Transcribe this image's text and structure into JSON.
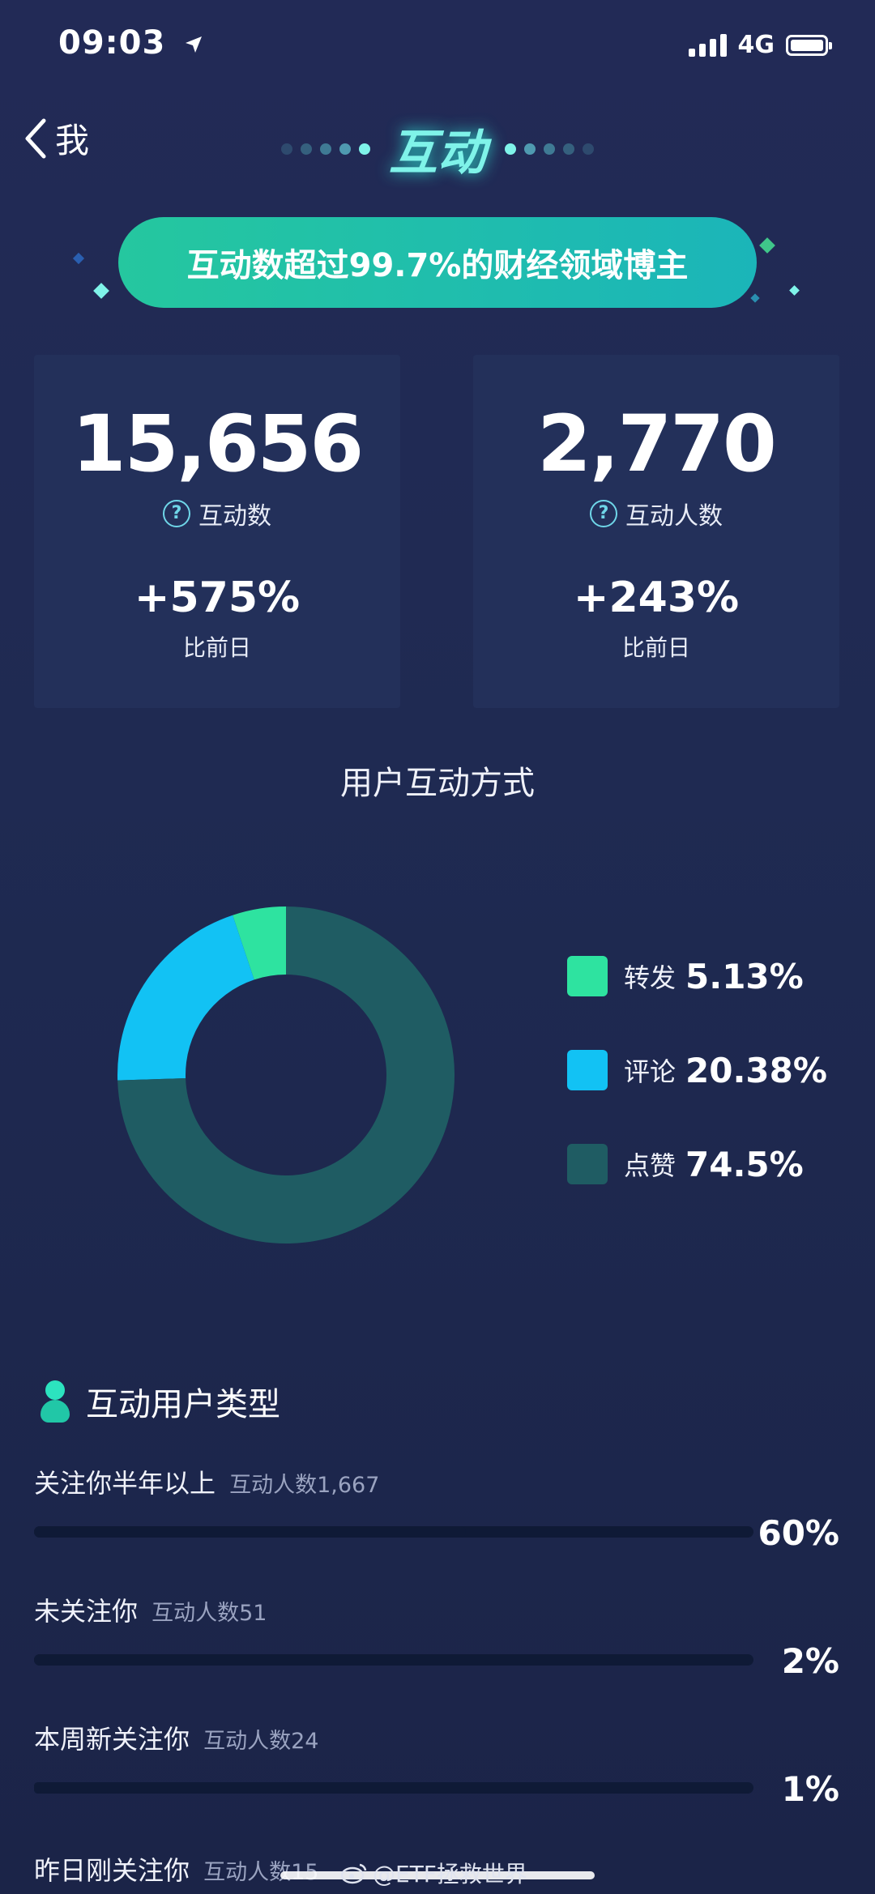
{
  "status_bar": {
    "time": "09:03",
    "network": "4G"
  },
  "nav": {
    "back_label": "我",
    "title": "互动"
  },
  "banner": {
    "text": "互动数超过99.7%的财经领域博主"
  },
  "stats": [
    {
      "value": "15,656",
      "label": "互动数",
      "change": "+575%",
      "change_label": "比前日"
    },
    {
      "value": "2,770",
      "label": "互动人数",
      "change": "+243%",
      "change_label": "比前日"
    }
  ],
  "interaction_methods": {
    "title": "用户互动方式",
    "legend": [
      {
        "label": "转发",
        "value_text": "5.13%",
        "color": "#2ee3a0"
      },
      {
        "label": "评论",
        "value_text": "20.38%",
        "color": "#12c2f4"
      },
      {
        "label": "点赞",
        "value_text": "74.5%",
        "color": "#1f5c63"
      }
    ]
  },
  "chart_data": {
    "type": "pie",
    "categories": [
      "转发",
      "评论",
      "点赞"
    ],
    "values": [
      5.13,
      20.38,
      74.5
    ],
    "title": "用户互动方式",
    "colors": [
      "#2ee3a0",
      "#12c2f4",
      "#1f5c63"
    ]
  },
  "user_types": {
    "title": "互动用户类型",
    "rows": [
      {
        "label": "关注你半年以上",
        "count": "互动人数1,667",
        "percent": "60%",
        "fraction": 0.6
      },
      {
        "label": "未关注你",
        "count": "互动人数51",
        "percent": "2%",
        "fraction": 0.02
      },
      {
        "label": "本周新关注你",
        "count": "互动人数24",
        "percent": "1%",
        "fraction": 0.01
      },
      {
        "label": "昨日刚关注你",
        "count": "互动人数15"
      }
    ]
  },
  "watermark": {
    "text": "@ETF拯救世界"
  }
}
